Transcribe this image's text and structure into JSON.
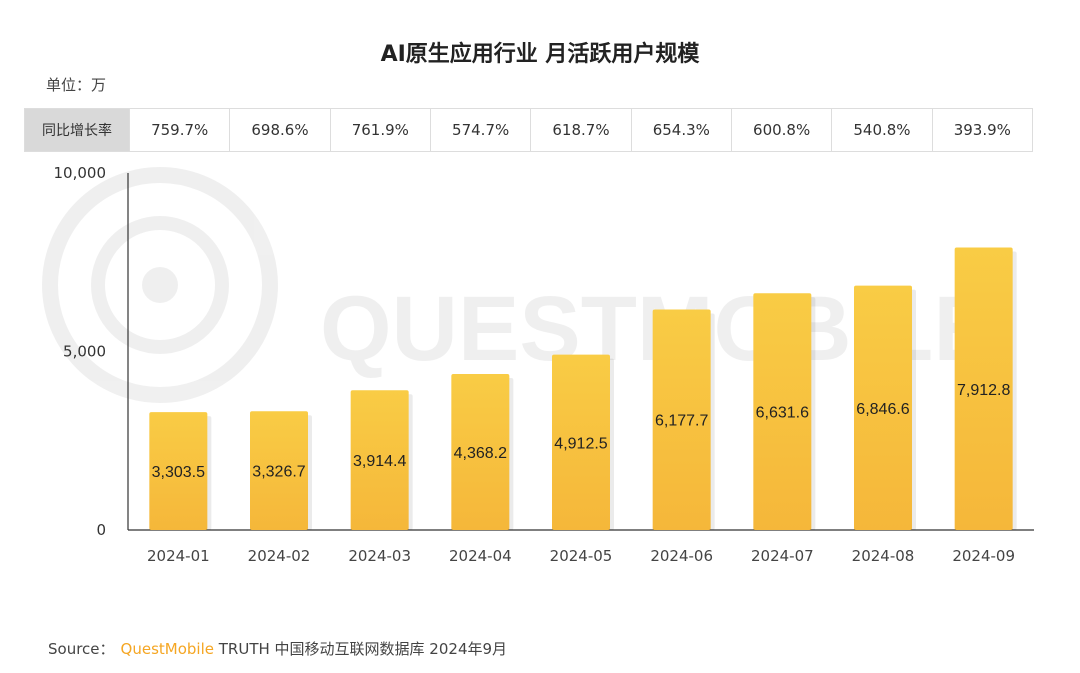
{
  "title": "AI原生应用行业 月活跃用户规模",
  "unit_label": "单位：万",
  "yoy": {
    "label": "同比增长率",
    "values": [
      "759.7%",
      "698.6%",
      "761.9%",
      "574.7%",
      "618.7%",
      "654.3%",
      "600.8%",
      "540.8%",
      "393.9%"
    ]
  },
  "watermark": "QUESTMOBILE",
  "source": {
    "prefix": "Source：",
    "brand": "QuestMobile",
    "text": "TRUTH 中国移动互联网数据库 2024年9月"
  },
  "colors": {
    "bar_top": "#f9cc45",
    "bar_bottom": "#f5b73a",
    "brand": "#f5a623",
    "axis": "#333333"
  },
  "chart_data": {
    "type": "bar",
    "categories": [
      "2024-01",
      "2024-02",
      "2024-03",
      "2024-04",
      "2024-05",
      "2024-06",
      "2024-07",
      "2024-08",
      "2024-09"
    ],
    "values": [
      3303.5,
      3326.7,
      3914.4,
      4368.2,
      4912.5,
      6177.7,
      6631.6,
      6846.6,
      7912.8
    ],
    "value_labels": [
      "3,303.5",
      "3,326.7",
      "3,914.4",
      "4,368.2",
      "4,912.5",
      "6,177.7",
      "6,631.6",
      "6,846.6",
      "7,912.8"
    ],
    "yticks": [
      0,
      5000,
      10000
    ],
    "ytick_labels": [
      "0",
      "5,000",
      "10,000"
    ],
    "ylim": [
      0,
      10000
    ],
    "grid": false,
    "legend": "none"
  }
}
